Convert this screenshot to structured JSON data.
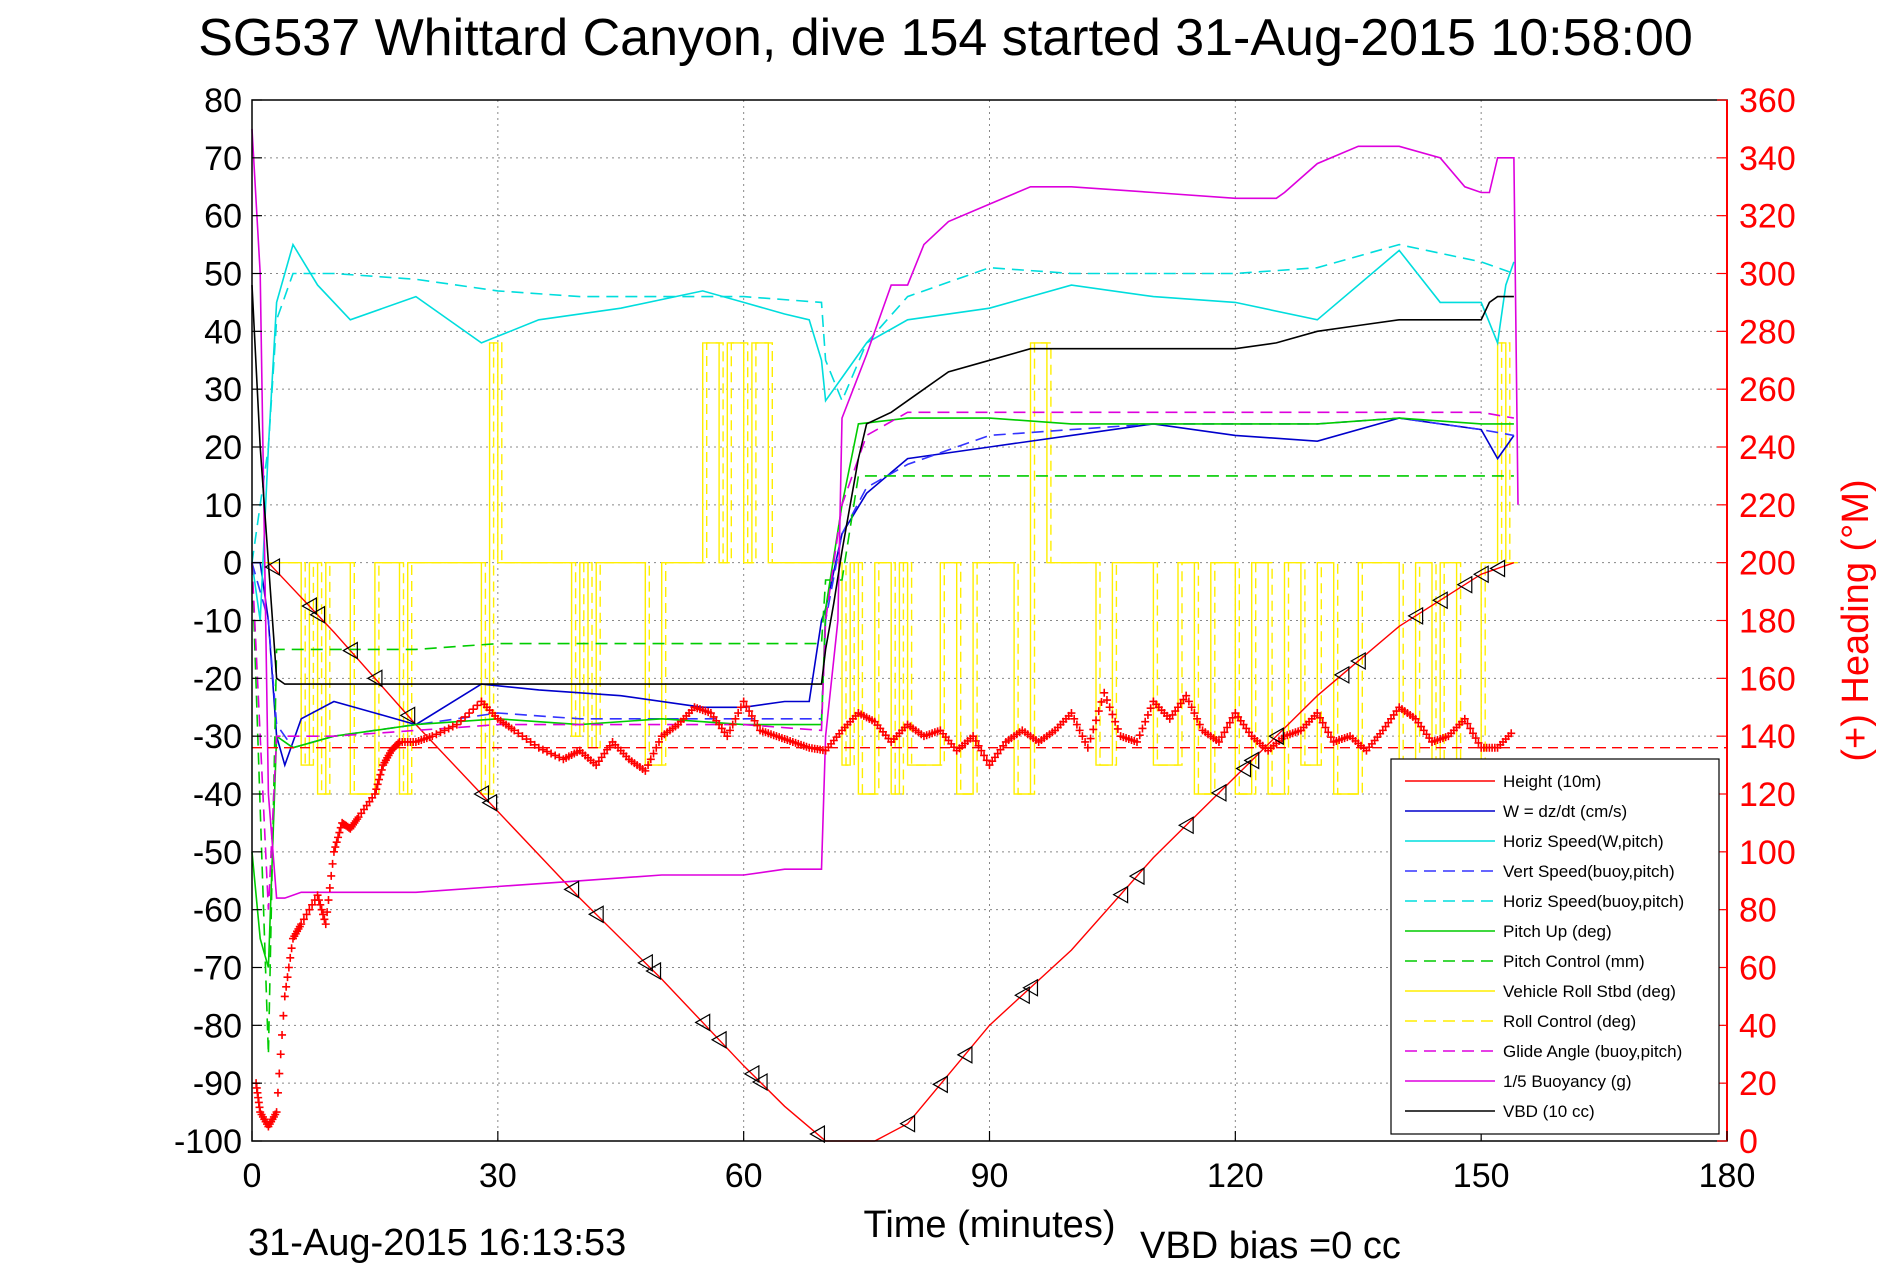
{
  "title": "SG537 Whittard Canyon, dive 154 started 31-Aug-2015 10:58:00",
  "footer": {
    "timestamp": "31-Aug-2015 16:13:53",
    "vbd_bias": "VBD bias =0 cc"
  },
  "chart_data": {
    "type": "line",
    "xlabel": "Time (minutes)",
    "ylabel_right": "(+) Heading (°M)",
    "xlim": [
      0,
      180
    ],
    "ylim_left": [
      -100,
      80
    ],
    "ylim_right": [
      0,
      360
    ],
    "xticks": [
      0,
      30,
      60,
      90,
      120,
      150,
      180
    ],
    "yticks_left": [
      80,
      70,
      60,
      50,
      40,
      30,
      20,
      10,
      0,
      -10,
      -20,
      -30,
      -40,
      -50,
      -60,
      -70,
      -80,
      -90,
      -100
    ],
    "yticks_right": [
      360,
      340,
      320,
      300,
      280,
      260,
      240,
      220,
      200,
      180,
      160,
      140,
      120,
      100,
      80,
      60,
      40,
      20,
      0
    ],
    "grid": true,
    "legend_position": "bottom-right",
    "colors": {
      "height": "#ff0000",
      "w": "#0000cc",
      "horiz_w": "#00dddd",
      "vert_buoy": "#3333ff",
      "horiz_buoy": "#00dddd",
      "pitch_up": "#00cc00",
      "pitch_control": "#00cc00",
      "roll": "#ffee00",
      "roll_control": "#ffee00",
      "glide": "#dd00dd",
      "buoyancy": "#dd00dd",
      "vbd": "#000000",
      "heading": "#ff0000"
    },
    "series": [
      {
        "key": "height",
        "name": "Height (10m)",
        "style": "solid",
        "x": [
          2,
          10,
          20,
          30,
          40,
          50,
          60,
          65,
          70,
          76,
          80,
          90,
          100,
          110,
          120,
          130,
          140,
          150,
          154
        ],
        "y": [
          0,
          -12,
          -28,
          -43,
          -58,
          -72,
          -87,
          -94,
          -100,
          -100,
          -97,
          -80,
          -67,
          -51,
          -37,
          -23,
          -11,
          -2,
          0
        ]
      },
      {
        "key": "w",
        "name": "W = dz/dt (cm/s)",
        "style": "solid",
        "x": [
          0,
          1,
          2,
          3,
          4,
          6,
          10,
          15,
          20,
          28,
          35,
          45,
          55,
          60,
          65,
          68,
          69.5,
          70,
          72,
          75,
          80,
          90,
          100,
          110,
          120,
          130,
          140,
          150,
          152,
          153,
          154
        ],
        "y": [
          0,
          0,
          -10,
          -30,
          -35,
          -27,
          -24,
          -26,
          -28,
          -21,
          -22,
          -23,
          -25,
          -25,
          -24,
          -24,
          -10,
          -8,
          5,
          12,
          18,
          20,
          22,
          24,
          22,
          21,
          25,
          23,
          18,
          20,
          22
        ]
      },
      {
        "key": "horiz_w",
        "name": "Horiz Speed(W,pitch)",
        "style": "solid",
        "x": [
          0,
          1,
          2,
          3,
          5,
          8,
          12,
          20,
          28,
          35,
          45,
          55,
          60,
          65,
          68,
          69.5,
          70,
          72,
          75,
          80,
          90,
          100,
          110,
          120,
          130,
          140,
          145,
          150,
          152,
          153,
          154
        ],
        "y": [
          0,
          -10,
          20,
          45,
          55,
          48,
          42,
          46,
          38,
          42,
          44,
          47,
          45,
          43,
          42,
          35,
          28,
          32,
          38,
          42,
          44,
          48,
          46,
          45,
          42,
          54,
          45,
          45,
          38,
          48,
          52
        ]
      },
      {
        "key": "vert_buoy",
        "name": "Vert Speed(buoy,pitch)",
        "style": "dashed",
        "x": [
          0,
          2,
          3,
          5,
          10,
          20,
          30,
          40,
          50,
          60,
          69.5,
          70,
          72,
          75,
          80,
          90,
          100,
          110,
          120,
          130,
          140,
          150,
          154
        ],
        "y": [
          0,
          -10,
          -28,
          -32,
          -30,
          -28,
          -26,
          -27,
          -27,
          -27,
          -27,
          -10,
          5,
          13,
          17,
          22,
          23,
          24,
          24,
          24,
          25,
          23,
          22
        ]
      },
      {
        "key": "horiz_buoy",
        "name": "Horiz Speed(buoy,pitch)",
        "style": "dashed",
        "x": [
          0,
          2,
          3,
          5,
          10,
          20,
          30,
          40,
          50,
          60,
          69.5,
          70,
          72,
          75,
          80,
          90,
          100,
          110,
          120,
          130,
          140,
          150,
          154
        ],
        "y": [
          0,
          20,
          42,
          50,
          50,
          49,
          47,
          46,
          46,
          46,
          45,
          35,
          28,
          38,
          46,
          51,
          50,
          50,
          50,
          51,
          55,
          52,
          50
        ]
      },
      {
        "key": "pitch_up",
        "name": "Pitch Up (deg)",
        "style": "solid",
        "x": [
          0,
          1,
          2,
          3,
          5,
          10,
          20,
          30,
          40,
          50,
          60,
          69.5,
          70,
          72,
          74,
          80,
          90,
          100,
          110,
          120,
          130,
          140,
          150,
          154
        ],
        "y": [
          -50,
          -65,
          -70,
          -30,
          -32,
          -30,
          -28,
          -27,
          -28,
          -27,
          -28,
          -28,
          -8,
          10,
          24,
          25,
          25,
          24,
          24,
          24,
          24,
          25,
          24,
          24
        ]
      },
      {
        "key": "pitch_control",
        "name": "Pitch Control (mm)",
        "style": "dashed",
        "x": [
          0,
          2,
          3,
          5,
          10,
          20,
          30,
          40,
          50,
          60,
          69.5,
          70,
          72,
          74,
          80,
          90,
          100,
          110,
          120,
          130,
          140,
          150,
          154
        ],
        "y": [
          0,
          -85,
          -15,
          -15,
          -15,
          -15,
          -14,
          -14,
          -14,
          -14,
          -14,
          -3,
          -3,
          15,
          15,
          15,
          15,
          15,
          15,
          15,
          15,
          15,
          15
        ]
      },
      {
        "key": "glide",
        "name": "Glide Angle (buoy,pitch)",
        "style": "dashed",
        "x": [
          0,
          2,
          3,
          5,
          10,
          20,
          30,
          40,
          50,
          60,
          69.5,
          70,
          72,
          75,
          80,
          90,
          100,
          110,
          120,
          130,
          140,
          150,
          154
        ],
        "y": [
          0,
          -60,
          -30,
          -30,
          -30,
          -29,
          -28,
          -28,
          -28,
          -28,
          -29,
          -10,
          10,
          22,
          26,
          26,
          26,
          26,
          26,
          26,
          26,
          26,
          25
        ]
      },
      {
        "key": "buoyancy",
        "name": "1/5 Buoyancy (g)",
        "style": "solid",
        "x": [
          0,
          1,
          2,
          3,
          4,
          6,
          10,
          20,
          30,
          40,
          50,
          60,
          65,
          69.5,
          70,
          71.5,
          72,
          75,
          78,
          80,
          82,
          85,
          90,
          95,
          100,
          110,
          120,
          125,
          126,
          130,
          135,
          140,
          145,
          148,
          150,
          151,
          152,
          154,
          154.5
        ],
        "y": [
          75,
          50,
          -40,
          -58,
          -58,
          -57,
          -57,
          -57,
          -56,
          -55,
          -54,
          -54,
          -53,
          -53,
          -30,
          -10,
          25,
          36,
          48,
          48,
          55,
          59,
          62,
          65,
          65,
          64,
          63,
          63,
          64,
          69,
          72,
          72,
          70,
          65,
          64,
          64,
          70,
          70,
          10
        ]
      },
      {
        "key": "vbd",
        "name": "VBD (10 cc)",
        "style": "solid",
        "x": [
          0,
          1,
          2,
          3,
          4,
          6,
          20,
          40,
          60,
          69.5,
          70,
          71,
          72,
          73,
          74,
          75,
          78,
          80,
          82,
          85,
          90,
          95,
          100,
          110,
          120,
          125,
          130,
          135,
          140,
          145,
          150,
          151,
          152,
          154
        ],
        "y": [
          48,
          20,
          0,
          -20,
          -21,
          -21,
          -21,
          -21,
          -21,
          -21,
          -15,
          -7,
          2,
          10,
          18,
          24,
          26,
          28,
          30,
          33,
          35,
          37,
          37,
          37,
          37,
          38,
          40,
          41,
          42,
          42,
          42,
          45,
          46,
          46
        ]
      }
    ],
    "roll_series": {
      "vehicle_roll": {
        "name": "Vehicle Roll Stbd (deg)",
        "style": "solid"
      },
      "roll_control": {
        "name": "Roll Control (deg)",
        "style": "dashed"
      },
      "segments_x": [
        0,
        3,
        6,
        7,
        8,
        9,
        12,
        15,
        18,
        19,
        28,
        29,
        30,
        33,
        35,
        38,
        39,
        40,
        41,
        42,
        45,
        48,
        50,
        55,
        57,
        58,
        60,
        61,
        63,
        65,
        69,
        72,
        73,
        74,
        76,
        78,
        79,
        80,
        84,
        86,
        88,
        90,
        93,
        95,
        97,
        100,
        103,
        105,
        107,
        110,
        113,
        115,
        117,
        120,
        122,
        124,
        126,
        128,
        130,
        132,
        135,
        137,
        140,
        142,
        144,
        145,
        147,
        150,
        152,
        153,
        154
      ],
      "segments_y": [
        0,
        0,
        -35,
        0,
        -40,
        0,
        -40,
        0,
        -40,
        0,
        -40,
        38,
        0,
        0,
        0,
        0,
        -30,
        0,
        -32,
        0,
        0,
        -35,
        0,
        38,
        0,
        38,
        0,
        38,
        0,
        0,
        0,
        -35,
        0,
        -40,
        0,
        -40,
        0,
        -35,
        0,
        -40,
        0,
        0,
        -40,
        38,
        0,
        0,
        -35,
        0,
        0,
        -35,
        0,
        -40,
        0,
        -40,
        0,
        -40,
        0,
        -35,
        0,
        -40,
        0,
        0,
        -40,
        0,
        -40,
        0,
        -40,
        0,
        38,
        0,
        0
      ]
    },
    "heading": {
      "name": "(+) Heading (°M)",
      "x": [
        0.5,
        1,
        2,
        3,
        4,
        5,
        6,
        8,
        9,
        10,
        11,
        12,
        13,
        15,
        16,
        17,
        18,
        20,
        22,
        25,
        28,
        30,
        32,
        35,
        38,
        40,
        42,
        44,
        46,
        48,
        50,
        52,
        54,
        56,
        58,
        60,
        62,
        64,
        66,
        68,
        70,
        72,
        74,
        76,
        78,
        80,
        82,
        84,
        86,
        88,
        90,
        92,
        94,
        96,
        98,
        100,
        102,
        104,
        106,
        108,
        110,
        112,
        114,
        116,
        118,
        120,
        122,
        124,
        126,
        128,
        130,
        132,
        134,
        136,
        138,
        140,
        142,
        144,
        146,
        148,
        150,
        152,
        154
      ],
      "y": [
        20,
        10,
        5,
        10,
        50,
        70,
        75,
        85,
        75,
        100,
        110,
        108,
        112,
        120,
        130,
        135,
        138,
        138,
        140,
        144,
        152,
        146,
        142,
        136,
        132,
        135,
        130,
        138,
        132,
        128,
        140,
        144,
        150,
        148,
        140,
        152,
        142,
        140,
        138,
        136,
        135,
        142,
        148,
        145,
        138,
        144,
        140,
        142,
        135,
        140,
        130,
        138,
        142,
        138,
        142,
        148,
        136,
        155,
        140,
        138,
        152,
        146,
        154,
        142,
        138,
        148,
        140,
        135,
        140,
        142,
        148,
        138,
        140,
        135,
        142,
        150,
        146,
        138,
        140,
        146,
        136,
        136,
        142
      ]
    }
  }
}
